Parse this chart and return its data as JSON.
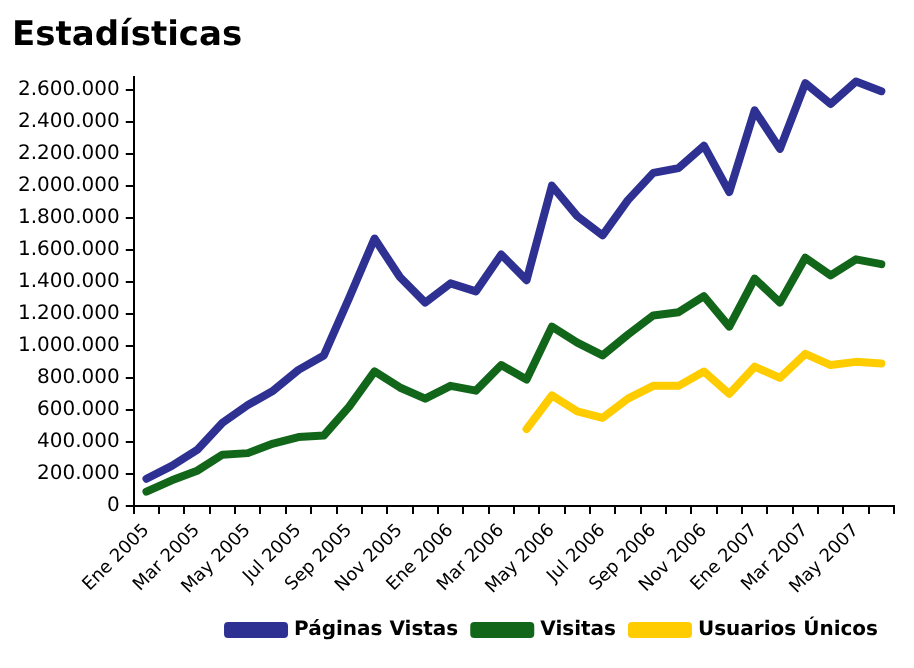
{
  "chart_data": {
    "type": "line",
    "title": "Estadísticas",
    "categories": [
      "Ene 2005",
      null,
      "Mar 2005",
      null,
      "May 2005",
      null,
      "Jul 2005",
      null,
      "Sep 2005",
      null,
      "Nov 2005",
      null,
      "Ene 2006",
      null,
      "Mar 2006",
      null,
      "May 2006",
      null,
      "Jul 2006",
      null,
      "Sep 2006",
      null,
      "Nov 2006",
      null,
      "Ene 2007",
      null,
      "Mar 2007",
      null,
      "May 2007",
      null
    ],
    "series": [
      {
        "name": "Páginas Vistas",
        "color": "#2e3192",
        "values": [
          170000,
          250000,
          350000,
          520000,
          630000,
          720000,
          850000,
          940000,
          1300000,
          1670000,
          1430000,
          1270000,
          1390000,
          1340000,
          1570000,
          1410000,
          2000000,
          1810000,
          1690000,
          1910000,
          2080000,
          2110000,
          2250000,
          1960000,
          2470000,
          2230000,
          2640000,
          2510000,
          2650000,
          2590000
        ]
      },
      {
        "name": "Visitas",
        "color": "#12661a",
        "values": [
          90000,
          160000,
          220000,
          320000,
          330000,
          390000,
          430000,
          440000,
          620000,
          840000,
          740000,
          670000,
          750000,
          720000,
          880000,
          790000,
          1120000,
          1020000,
          940000,
          1070000,
          1190000,
          1210000,
          1310000,
          1120000,
          1420000,
          1270000,
          1550000,
          1440000,
          1540000,
          1510000
        ]
      },
      {
        "name": "Usuarios Únicos",
        "color": "#ffcc00",
        "values": [
          null,
          null,
          null,
          null,
          null,
          null,
          null,
          null,
          null,
          null,
          null,
          null,
          null,
          null,
          null,
          480000,
          690000,
          590000,
          550000,
          670000,
          750000,
          750000,
          840000,
          700000,
          870000,
          800000,
          950000,
          880000,
          900000,
          890000
        ]
      }
    ],
    "ylim": [
      0,
      2680000
    ],
    "yticks": [
      {
        "value": 0,
        "label": "0"
      },
      {
        "value": 200000,
        "label": "200.000"
      },
      {
        "value": 400000,
        "label": "400.000"
      },
      {
        "value": 600000,
        "label": "600.000"
      },
      {
        "value": 800000,
        "label": "800.000"
      },
      {
        "value": 1000000,
        "label": "1.000.000"
      },
      {
        "value": 1200000,
        "label": "1.200.000"
      },
      {
        "value": 1400000,
        "label": "1.400.000"
      },
      {
        "value": 1600000,
        "label": "1.600.000"
      },
      {
        "value": 1800000,
        "label": "1.800.000"
      },
      {
        "value": 2000000,
        "label": "2.000.000"
      },
      {
        "value": 2200000,
        "label": "2.200.000"
      },
      {
        "value": 2400000,
        "label": "2.400.000"
      },
      {
        "value": 2600000,
        "label": "2.600.000"
      }
    ],
    "grid": false,
    "legend": "bottom right",
    "marker": "none",
    "line_style": "solid"
  }
}
